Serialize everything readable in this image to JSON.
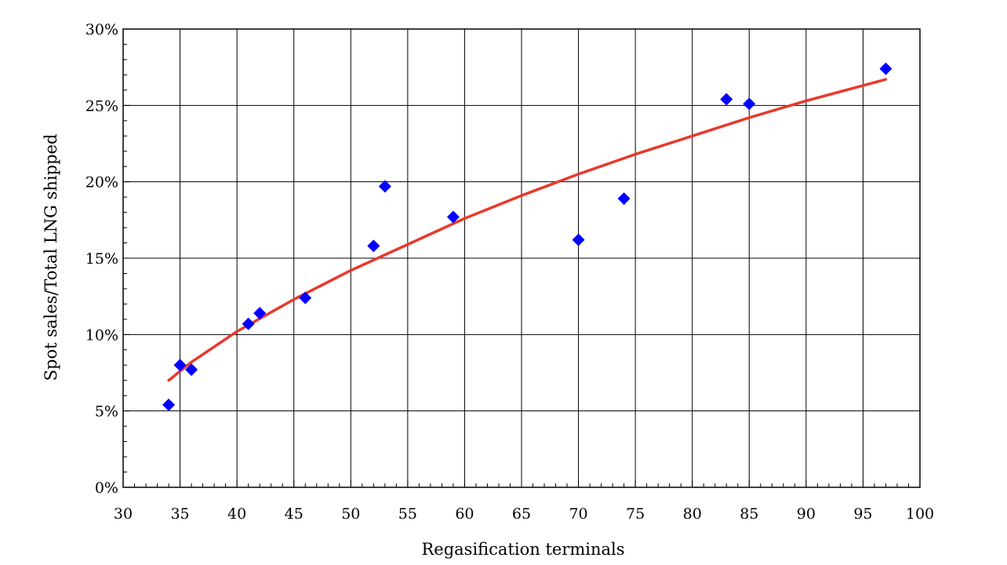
{
  "chart_data": {
    "type": "scatter",
    "title": "",
    "xlabel": "Regasification terminals",
    "ylabel": "Spot sales/Total LNG shipped",
    "xlim": [
      30,
      100
    ],
    "ylim": [
      0,
      30
    ],
    "x_ticks": [
      30,
      35,
      40,
      45,
      50,
      55,
      60,
      65,
      70,
      75,
      80,
      85,
      90,
      95,
      100
    ],
    "y_ticks": [
      0,
      5,
      10,
      15,
      20,
      25,
      30
    ],
    "y_tick_labels": [
      "0%",
      "5%",
      "10%",
      "15%",
      "20%",
      "25%",
      "30%"
    ],
    "grid": true,
    "series": [
      {
        "type": "scatter",
        "marker": "diamond",
        "color": "#0000ff",
        "points": [
          {
            "x": 34,
            "y": 5.4
          },
          {
            "x": 35,
            "y": 8.0
          },
          {
            "x": 36,
            "y": 7.7
          },
          {
            "x": 41,
            "y": 10.7
          },
          {
            "x": 42,
            "y": 11.4
          },
          {
            "x": 46,
            "y": 12.4
          },
          {
            "x": 52,
            "y": 15.8
          },
          {
            "x": 53,
            "y": 19.7
          },
          {
            "x": 59,
            "y": 17.7
          },
          {
            "x": 70,
            "y": 16.2
          },
          {
            "x": 74,
            "y": 18.9
          },
          {
            "x": 83,
            "y": 25.4
          },
          {
            "x": 85,
            "y": 25.1
          },
          {
            "x": 97,
            "y": 27.4
          }
        ]
      },
      {
        "type": "line",
        "color": "#e8392c",
        "points": [
          {
            "x": 34,
            "y": 7.0
          },
          {
            "x": 36,
            "y": 8.2
          },
          {
            "x": 40,
            "y": 10.2
          },
          {
            "x": 45,
            "y": 12.3
          },
          {
            "x": 50,
            "y": 14.2
          },
          {
            "x": 55,
            "y": 15.9
          },
          {
            "x": 60,
            "y": 17.6
          },
          {
            "x": 65,
            "y": 19.1
          },
          {
            "x": 70,
            "y": 20.5
          },
          {
            "x": 75,
            "y": 21.8
          },
          {
            "x": 80,
            "y": 23.0
          },
          {
            "x": 85,
            "y": 24.2
          },
          {
            "x": 90,
            "y": 25.3
          },
          {
            "x": 97,
            "y": 26.7
          }
        ]
      }
    ]
  }
}
